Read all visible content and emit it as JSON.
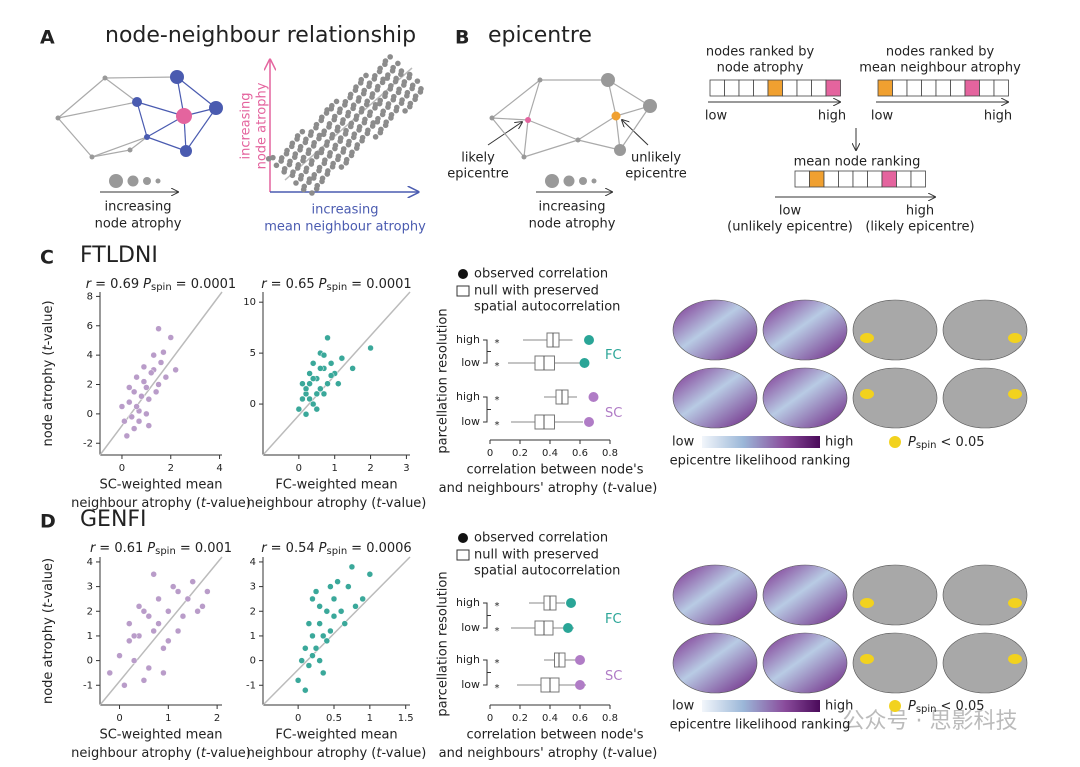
{
  "panel_a": {
    "letter": "A",
    "title": "node-neighbour relationship",
    "size_legend": [
      "increasing",
      "node atrophy"
    ],
    "y_axis": [
      "increasing",
      "node atrophy"
    ],
    "x_axis": [
      "increasing",
      "mean neighbour atrophy"
    ]
  },
  "panel_b": {
    "letter": "B",
    "title": "epicentre",
    "likely": [
      "likely",
      "epicentre"
    ],
    "unlikely": [
      "unlikely",
      "epicentre"
    ],
    "size_legend": [
      "increasing",
      "node atrophy"
    ],
    "rank_node": {
      "title": [
        "nodes ranked by",
        "node atrophy"
      ],
      "low": "low",
      "high": "high"
    },
    "rank_neighbour": {
      "title": [
        "nodes ranked by",
        "mean neighbour atrophy"
      ],
      "low": "low",
      "high": "high"
    },
    "rank_mean": {
      "title": "mean node ranking",
      "low": "low",
      "high": "high",
      "low_note": "(unlikely epicentre)",
      "high_note": "(likely epicentre)"
    }
  },
  "datasets": [
    {
      "letter": "C",
      "title": "FTLDNI",
      "ylabel": {
        "pre": "node atrophy (",
        "it": "t",
        "post": "-value)"
      },
      "scatters": [
        {
          "type": "scatter",
          "color": "#b99cc9",
          "stat": {
            "r": "r",
            "r_val": "= 0.69",
            "p": "P",
            "p_sub": "spin",
            "p_val": "= 0.0001"
          },
          "xlim": [
            -0.9,
            4.1
          ],
          "ylim": [
            -2.8,
            8.3
          ],
          "xticks": [
            0,
            2,
            4
          ],
          "yticks": [
            -2,
            0,
            2,
            4,
            6,
            8
          ],
          "xlabel": [
            "SC-weighted mean",
            {
              "pre": "neighbour atrophy (",
              "it": "t",
              "post": "-value)"
            }
          ],
          "x": [
            0.1,
            0.3,
            0.5,
            0.7,
            0.9,
            1.1,
            1.3,
            1.5,
            1.7,
            2.0,
            0.2,
            0.4,
            0.6,
            0.8,
            1.0,
            1.2,
            1.4,
            1.6,
            0.0,
            0.5,
            0.9,
            1.3,
            1.0,
            0.7,
            1.8,
            2.2,
            0.3,
            1.1,
            0.6,
            1.5
          ],
          "y": [
            -0.5,
            0.8,
            1.5,
            0.2,
            2.2,
            1.0,
            3.0,
            2.0,
            4.2,
            5.2,
            -1.5,
            -0.2,
            2.5,
            1.2,
            0.0,
            2.8,
            1.5,
            3.5,
            0.5,
            -1.0,
            3.2,
            4.0,
            1.8,
            -0.5,
            2.5,
            3.0,
            1.8,
            -0.8,
            0.5,
            5.8
          ]
        },
        {
          "type": "scatter",
          "color": "#3aa89a",
          "stat": {
            "r": "r",
            "r_val": "= 0.65",
            "p": "P",
            "p_sub": "spin",
            "p_val": "= 0.0001"
          },
          "xlim": [
            -1,
            3.1
          ],
          "ylim": [
            -5,
            11
          ],
          "xticks": [
            0,
            1,
            2,
            3
          ],
          "yticks": [
            0,
            5,
            10
          ],
          "xlabel": [
            "FC-weighted mean",
            {
              "pre": "neighbour atrophy (",
              "it": "t",
              "post": "-value)"
            }
          ],
          "x": [
            0.0,
            0.1,
            0.2,
            0.3,
            0.4,
            0.5,
            0.6,
            0.7,
            0.8,
            0.9,
            1.0,
            1.2,
            0.2,
            0.3,
            0.5,
            0.6,
            0.4,
            0.8,
            1.1,
            2.0,
            0.1,
            0.5,
            0.7,
            0.3,
            0.9,
            0.6,
            0.4,
            1.5,
            0.2,
            0.7
          ],
          "y": [
            -0.5,
            0.5,
            1.0,
            2.0,
            0.0,
            2.5,
            1.5,
            3.5,
            2.0,
            4.0,
            3.0,
            4.5,
            -1.0,
            3.0,
            1.0,
            5.0,
            2.5,
            6.5,
            2.0,
            5.5,
            2.0,
            -0.5,
            1.0,
            0.5,
            2.8,
            3.5,
            4.0,
            3.5,
            1.5,
            4.8
          ]
        }
      ],
      "boxes": {
        "legend": {
          "observed": "observed correlation",
          "null": [
            "null with preserved",
            "spatial autocorrelation"
          ]
        },
        "ylabel": "parcellation resolution",
        "xlim": [
          0,
          0.8
        ],
        "xticks": [
          0,
          0.2,
          0.4,
          0.6,
          0.8
        ],
        "xlabel": [
          "correlation between node's",
          {
            "pre": "and neighbours' atrophy (",
            "it": "t",
            "post": "-value)"
          }
        ],
        "groups": [
          {
            "name": "FC",
            "color": "#2aa597",
            "rows": [
              {
                "label": "high",
                "marker": "*",
                "whisker_low": 0.22,
                "q1": 0.38,
                "median": 0.42,
                "q3": 0.46,
                "whisker_high": 0.55,
                "observed": 0.66
              },
              {
                "label": "low",
                "marker": "*",
                "whisker_low": 0.12,
                "q1": 0.3,
                "median": 0.36,
                "q3": 0.43,
                "whisker_high": 0.6,
                "observed": 0.63
              }
            ]
          },
          {
            "name": "SC",
            "color": "#b07cc6",
            "rows": [
              {
                "label": "high",
                "marker": "*",
                "whisker_low": 0.36,
                "q1": 0.44,
                "median": 0.48,
                "q3": 0.52,
                "whisker_high": 0.58,
                "observed": 0.69
              },
              {
                "label": "low",
                "marker": "*",
                "whisker_low": 0.14,
                "q1": 0.3,
                "median": 0.36,
                "q3": 0.43,
                "whisker_high": 0.62,
                "observed": 0.66
              }
            ]
          }
        ]
      },
      "brain": {
        "low": "low",
        "high": "high",
        "label": "epicentre likelihood ranking",
        "p": "P",
        "p_sub": "spin",
        "p_val": "< 0.05"
      }
    },
    {
      "letter": "D",
      "title": "GENFI",
      "ylabel": {
        "pre": "node atrophy (",
        "it": "t",
        "post": "-value)"
      },
      "scatters": [
        {
          "type": "scatter",
          "color": "#b99cc9",
          "stat": {
            "r": "r",
            "r_val": "= 0.61",
            "p": "P",
            "p_sub": "spin",
            "p_val": "= 0.001"
          },
          "xlim": [
            -0.4,
            2.1
          ],
          "ylim": [
            -1.8,
            4.2
          ],
          "xticks": [
            0,
            1,
            2
          ],
          "yticks": [
            -1,
            0,
            1,
            2,
            3,
            4
          ],
          "xlabel": [
            "SC-weighted mean",
            {
              "pre": "neighbour atrophy (",
              "it": "t",
              "post": "-value)"
            }
          ],
          "x": [
            -0.2,
            0,
            0.2,
            0.4,
            0.6,
            0.8,
            1.0,
            1.2,
            1.4,
            1.6,
            1.8,
            0.1,
            0.3,
            0.5,
            0.7,
            0.9,
            1.1,
            1.3,
            0.5,
            0.8,
            1.0,
            0.6,
            0.4,
            1.5,
            0.2,
            0.9,
            1.2,
            0.7,
            1.7,
            0.3
          ],
          "y": [
            -0.5,
            0.2,
            0.8,
            1.0,
            -0.3,
            1.5,
            2.0,
            1.2,
            2.5,
            2.0,
            2.8,
            -1.0,
            0.0,
            2.0,
            1.2,
            0.5,
            3.0,
            1.8,
            -0.8,
            2.5,
            0.8,
            1.8,
            2.2,
            3.2,
            1.5,
            -0.5,
            2.8,
            3.5,
            2.2,
            1.0
          ]
        },
        {
          "type": "scatter",
          "color": "#3aa89a",
          "stat": {
            "r": "r",
            "r_val": "= 0.54",
            "p": "P",
            "p_sub": "spin",
            "p_val": "= 0.0006"
          },
          "xlim": [
            -0.49,
            1.56
          ],
          "ylim": [
            -1.8,
            4.2
          ],
          "xticks": [
            0,
            0.5,
            1,
            1.5
          ],
          "yticks": [
            -1,
            0,
            1,
            2,
            3,
            4
          ],
          "xlabel": [
            "FC-weighted mean",
            {
              "pre": "neighbour atrophy (",
              "it": "t",
              "post": "-value)"
            }
          ],
          "x": [
            0.0,
            0.05,
            0.1,
            0.15,
            0.2,
            0.25,
            0.3,
            0.35,
            0.4,
            0.45,
            0.5,
            0.6,
            0.7,
            0.8,
            1.0,
            0.1,
            0.2,
            0.3,
            0.4,
            0.5,
            0.15,
            0.25,
            0.35,
            0.55,
            0.65,
            0.45,
            0.3,
            0.2,
            0.9,
            0.75
          ],
          "y": [
            -0.8,
            0.0,
            0.5,
            -0.2,
            1.0,
            0.5,
            1.5,
            1.0,
            2.0,
            1.2,
            2.5,
            2.0,
            3.0,
            2.2,
            3.5,
            -1.2,
            0.2,
            2.2,
            0.8,
            1.8,
            1.5,
            2.8,
            -0.5,
            3.2,
            1.5,
            3.0,
            0.0,
            2.5,
            2.5,
            3.8
          ]
        }
      ],
      "boxes": {
        "legend": {
          "observed": "observed correlation",
          "null": [
            "null with preserved",
            "spatial autocorrelation"
          ]
        },
        "ylabel": "parcellation resolution",
        "xlim": [
          0,
          0.8
        ],
        "xticks": [
          0,
          0.2,
          0.4,
          0.6,
          0.8
        ],
        "xlabel": [
          "correlation between node's",
          {
            "pre": "and neighbours' atrophy (",
            "it": "t",
            "post": "-value)"
          }
        ],
        "groups": [
          {
            "name": "FC",
            "color": "#2aa597",
            "rows": [
              {
                "label": "high",
                "marker": "*",
                "whisker_low": 0.26,
                "q1": 0.36,
                "median": 0.4,
                "q3": 0.44,
                "whisker_high": 0.5,
                "observed": 0.54
              },
              {
                "label": "low",
                "marker": "*",
                "whisker_low": 0.14,
                "q1": 0.3,
                "median": 0.36,
                "q3": 0.42,
                "whisker_high": 0.56,
                "observed": 0.52
              }
            ]
          },
          {
            "name": "SC",
            "color": "#b07cc6",
            "rows": [
              {
                "label": "high",
                "marker": "*",
                "whisker_low": 0.36,
                "q1": 0.43,
                "median": 0.46,
                "q3": 0.5,
                "whisker_high": 0.58,
                "observed": 0.6
              },
              {
                "label": "low",
                "marker": "*",
                "whisker_low": 0.18,
                "q1": 0.34,
                "median": 0.4,
                "q3": 0.46,
                "whisker_high": 0.64,
                "observed": 0.6
              }
            ]
          }
        ]
      },
      "brain": {
        "low": "low",
        "high": "high",
        "label": "epicentre likelihood ranking",
        "p": "P",
        "p_sub": "spin",
        "p_val": "< 0.05"
      }
    }
  ],
  "watermark": "公众号 · 思影科技"
}
